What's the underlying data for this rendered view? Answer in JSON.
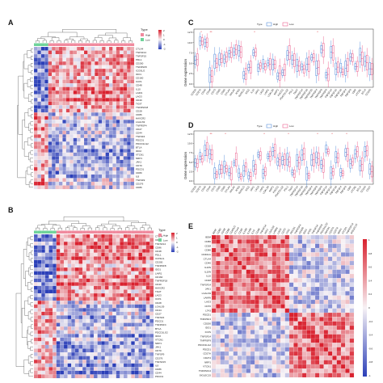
{
  "colors": {
    "high": "#e8457a",
    "low": "#3a7bd5",
    "type_high": "#f08a9e",
    "type_low": "#6fd39a",
    "heat_red": "#d9212e",
    "heat_blue": "#2b3fb8",
    "heat_mid": "#f7f2f5",
    "star": "#e0303a"
  },
  "panels": {
    "A": {
      "label": "A",
      "legend_title": "Type",
      "legend_high": "High",
      "legend_low": "Low",
      "scale_ticks": [
        "2",
        "1",
        "0",
        "-1",
        "-2"
      ],
      "genes": [
        "CTLA4",
        "TNFSF14",
        "TNFSF15",
        "PDL1",
        "CD200",
        "TNFRSF8",
        "ICOSLG",
        "IDO1",
        "CD160",
        "ICOS",
        "CD48",
        "IL10",
        "LAIR1",
        "LAG3",
        "CD40",
        "TIGIT",
        "TNFRSF18",
        "CD28",
        "CD86",
        "HAVCR2",
        "LGALS9",
        "TNFRSF4",
        "CD27",
        "CD44",
        "TNFSF4",
        "PDCD1",
        "PDCD1LG2",
        "BTLA",
        "IDO2",
        "VTCN1",
        "NRP1",
        "JAK1",
        "CD70",
        "PDCD1",
        "CD80",
        "IL9",
        "TNFSF9",
        "CD276",
        "CD86"
      ]
    },
    "B": {
      "label": "B",
      "legend_title": "Type",
      "legend_high": "High",
      "legend_low": "Low",
      "scale_ticks": [
        "2",
        "1",
        "0",
        "-1",
        "-2"
      ],
      "genes": [
        "CTLA4",
        "CD80",
        "TNFSF14",
        "CD86",
        "CD48",
        "PDL1",
        "ICOSLG",
        "CD200",
        "TNFRSF8",
        "IDO1",
        "LAIR1",
        "CD160",
        "TNFRSF18",
        "CD40",
        "HAVCR2",
        "TIGIT",
        "LAG3",
        "ICOS",
        "CD28",
        "LGALS9",
        "CD44",
        "CD27",
        "TNFSF4",
        "PDCD1",
        "TNFRSF4",
        "BTLA",
        "PDCD1LG2",
        "IDO2",
        "VTCN1",
        "NRP1",
        "JAK1",
        "CD70",
        "TNFSF9",
        "CD276",
        "TNFSF15",
        "IL9",
        "CD86",
        "CD44",
        "PDCD1"
      ]
    },
    "C": {
      "label": "C",
      "legend_title": "Type",
      "legend_high": "High",
      "legend_low": "Low",
      "ylabel": "Gene expression",
      "yticks": [
        "12.5",
        "10.0",
        "7.5",
        "5.0",
        "2.5",
        "0.0"
      ],
      "genes": [
        "CD200",
        "CD276",
        "CD40",
        "CD44",
        "CD70",
        "CD80",
        "CD86",
        "CTLA4",
        "HHLA2",
        "ICOS",
        "ICOSLG",
        "IDO1",
        "IL10",
        "JAK1",
        "LAG3",
        "LAIR1",
        "LGALS9",
        "NRP1",
        "PDCD1",
        "PDCD1LG2",
        "PDL1",
        "TIGIT",
        "TNFRSF14",
        "TNFRSF18",
        "TNFRSF25",
        "TNFRSF4",
        "TNFRSF8",
        "TNFRSF9",
        "TNFSF14",
        "TNFSF15",
        "TNFSF18",
        "TNFSF4",
        "TNFSF9",
        "VSIR",
        "VTCN1",
        "BTLA",
        "CD160"
      ],
      "stars": [
        "*",
        "**",
        "*",
        "*"
      ]
    },
    "D": {
      "label": "D",
      "legend_title": "Type",
      "legend_high": "High",
      "legend_low": "Low",
      "ylabel": "Gene expression",
      "yticks": [
        "12.5",
        "10.0",
        "7.5",
        "5.0",
        "2.5",
        "0.0"
      ],
      "genes": [
        "CD200",
        "CD276",
        "CD40",
        "CD44",
        "CD70",
        "CD80",
        "CD86",
        "CTLA4",
        "HHLA2",
        "ICOS",
        "ICOSLG",
        "IDO1",
        "JAK1",
        "LAG3",
        "LAIR1",
        "LGALS9",
        "NRP1",
        "PDCD1",
        "PDCD1LG2",
        "PDL1",
        "TIGIT",
        "TNFRSF14",
        "TNFRSF18",
        "TNFRSF25",
        "TNFRSF4",
        "TNFRSF8",
        "TNFRSF9",
        "TNFSF14",
        "TNFSF15",
        "TNFSF18",
        "TNFSF4",
        "TNFSF9",
        "VSIR",
        "VTCN1",
        "BTLA",
        "CD160",
        "CD27"
      ],
      "stars": [
        "**",
        "*",
        "*",
        "*",
        "*",
        "*",
        "*"
      ]
    },
    "E": {
      "label": "E",
      "scale_ticks": [
        "1",
        "0.8",
        "0.6",
        "0.4",
        "0.2",
        "0",
        "-0.2",
        "-0.4",
        "-0.6",
        "-0.8",
        "-1"
      ],
      "genes": [
        "BDM",
        "CD80",
        "CD28",
        "CD86",
        "CD40LG",
        "CTLA4",
        "CD40",
        "IL10N",
        "IL10N",
        "IL10",
        "CD48",
        "TNFSF14",
        "JAK1",
        "LGALS9",
        "LAMIN",
        "LAG3",
        "CD70",
        "LTA3",
        "PDCD1",
        "TNFRSF4",
        "CD200",
        "IDO1",
        "ICOS",
        "TNFSF14",
        "TNFRSF9",
        "PDCD1LG2",
        "PDCD1",
        "CD27A",
        "CD274",
        "NRP1",
        "VTCN1",
        "TNFRSF14",
        "SIGLEC15"
      ]
    }
  }
}
